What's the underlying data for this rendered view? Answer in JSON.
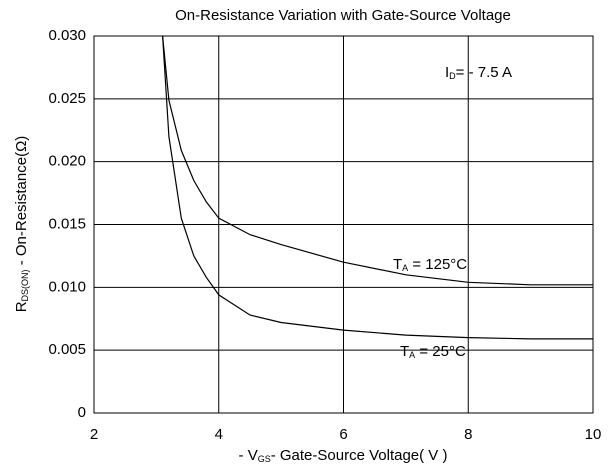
{
  "chart_data": {
    "type": "line",
    "title": "On-Resistance Variation with Gate-Source Voltage",
    "x_label": [
      {
        "text": "- V"
      },
      {
        "text": "GS",
        "sub": true
      },
      {
        "text": "- Gate-Source Voltage( V )"
      }
    ],
    "y_label": [
      {
        "text": "R"
      },
      {
        "text": "DS(ON)",
        "sub": true
      },
      {
        "text": " - On-Resistance(Ω)"
      }
    ],
    "annotations": [
      [
        {
          "text": "I"
        },
        {
          "text": "D",
          "sub": true
        },
        {
          "text": "= - 7.5 A"
        }
      ],
      [
        {
          "text": "T"
        },
        {
          "text": "A",
          "sub": true
        },
        {
          "text": " = 125°C"
        }
      ],
      [
        {
          "text": "T"
        },
        {
          "text": "A",
          "sub": true
        },
        {
          "text": " = 25°C"
        }
      ]
    ],
    "x": [
      3.1,
      3.2,
      3.4,
      3.6,
      3.8,
      4.0,
      4.5,
      5.0,
      6.0,
      7.0,
      8.0,
      9.0,
      10.0
    ],
    "series": [
      {
        "name": "T_A = 125°C",
        "color": "#000000",
        "values": [
          0.03,
          0.0249,
          0.0209,
          0.0185,
          0.0168,
          0.0155,
          0.0142,
          0.0134,
          0.012,
          0.011,
          0.0104,
          0.0102,
          0.0102
        ]
      },
      {
        "name": "T_A = 25°C",
        "color": "#000000",
        "values": [
          0.03,
          0.022,
          0.0155,
          0.0125,
          0.0108,
          0.0094,
          0.0078,
          0.0072,
          0.0066,
          0.0062,
          0.006,
          0.0059,
          0.0059
        ]
      }
    ],
    "xlim": [
      2,
      10
    ],
    "ylim": [
      0,
      0.03
    ],
    "xticks": [
      2,
      4,
      6,
      8,
      10
    ],
    "yticks": [
      0,
      {
        "value": 0.005,
        "label": "0.005"
      },
      {
        "value": 0.01,
        "label": "0.010"
      },
      {
        "value": 0.015,
        "label": "0.015"
      },
      {
        "value": 0.02,
        "label": "0.020"
      },
      {
        "value": 0.025,
        "label": "0.025"
      },
      {
        "value": 0.03,
        "label": "0.030"
      }
    ],
    "grid": true
  }
}
